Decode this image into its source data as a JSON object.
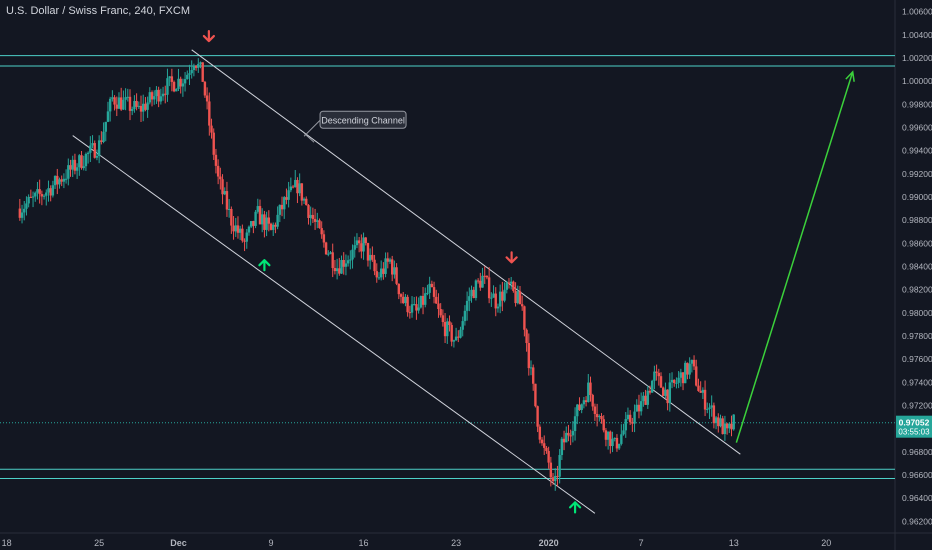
{
  "header": {
    "title": "U.S. Dollar / Swiss Franc, 240, FXCM"
  },
  "colors": {
    "background": "#131722",
    "up": "#26a69a",
    "down": "#ef5350",
    "channel": "#d1d4dc",
    "level": "#4dd0c8",
    "projection": "#3bd13b",
    "arrow_down": "#ef5350",
    "arrow_up": "#00e676",
    "axis_text": "#b2b5be",
    "price_tag": "#26a69a"
  },
  "chart_data": {
    "type": "candlestick",
    "title": "U.S. Dollar / Swiss Franc, 240, FXCM",
    "timeframe": "240",
    "x_tick_labels": [
      "18",
      "25",
      "Dec",
      "9",
      "16",
      "23",
      "2020",
      "7",
      "13",
      "20"
    ],
    "y_tick_labels": [
      "1.00600",
      "1.00400",
      "1.00200",
      "1.00000",
      "0.99800",
      "0.99600",
      "0.99400",
      "0.99200",
      "0.99000",
      "0.98800",
      "0.98600",
      "0.98400",
      "0.98200",
      "0.98000",
      "0.97800",
      "0.97600",
      "0.97400",
      "0.97200",
      "0.97000",
      "0.96800",
      "0.96600",
      "0.96400",
      "0.96200"
    ],
    "ylim": [
      0.961,
      1.007
    ],
    "last_price": "0.97052",
    "countdown": "03:55:03",
    "price_path": [
      [
        18,
        0.989
      ],
      [
        20,
        0.9905
      ],
      [
        22,
        0.9925
      ],
      [
        24,
        0.9945
      ],
      [
        25,
        0.9985
      ],
      [
        27,
        0.9975
      ],
      [
        29,
        0.9995
      ],
      [
        30.5,
        1.0003
      ],
      [
        31.2,
        1.002
      ],
      [
        31.8,
        1.0005
      ],
      [
        32.3,
        0.9965
      ],
      [
        33,
        0.9915
      ],
      [
        34,
        0.988
      ],
      [
        35,
        0.986
      ],
      [
        36,
        0.9885
      ],
      [
        37,
        0.987
      ],
      [
        38,
        0.9895
      ],
      [
        39,
        0.991
      ],
      [
        40,
        0.9885
      ],
      [
        41,
        0.986
      ],
      [
        42,
        0.984
      ],
      [
        43,
        0.985
      ],
      [
        44,
        0.986
      ],
      [
        45,
        0.983
      ],
      [
        46,
        0.9845
      ],
      [
        47,
        0.981
      ],
      [
        48,
        0.98
      ],
      [
        49,
        0.982
      ],
      [
        50,
        0.979
      ],
      [
        51,
        0.9775
      ],
      [
        52,
        0.9815
      ],
      [
        53,
        0.983
      ],
      [
        54,
        0.981
      ],
      [
        55,
        0.9822
      ],
      [
        56,
        0.9805
      ],
      [
        56.5,
        0.976
      ],
      [
        57,
        0.972
      ],
      [
        57.5,
        0.9685
      ],
      [
        58,
        0.967
      ],
      [
        58.4,
        0.9645
      ],
      [
        59,
        0.9685
      ],
      [
        60,
        0.971
      ],
      [
        61,
        0.9735
      ],
      [
        62,
        0.9705
      ],
      [
        63,
        0.9685
      ],
      [
        64,
        0.9705
      ],
      [
        65,
        0.972
      ],
      [
        66,
        0.9745
      ],
      [
        67,
        0.973
      ],
      [
        68,
        0.9745
      ],
      [
        68.8,
        0.9755
      ],
      [
        69.5,
        0.973
      ],
      [
        70.5,
        0.9712
      ],
      [
        71.5,
        0.9695
      ],
      [
        72,
        0.9705
      ]
    ],
    "resistance_levels": [
      1.0022,
      1.0013
    ],
    "support_levels": [
      0.9665,
      0.9657
    ],
    "current_price_line": 0.97052,
    "channel": {
      "upper": [
        [
          31.0,
          1.0027
        ],
        [
          72.5,
          0.9678
        ]
      ],
      "lower": [
        [
          22.0,
          0.9953
        ],
        [
          61.5,
          0.9627
        ]
      ]
    },
    "projection": [
      [
        72.2,
        0.9688
      ],
      [
        81.0,
        1.0008
      ]
    ],
    "markers": [
      {
        "kind": "down-arrow",
        "x": 32.3,
        "y": 1.0038
      },
      {
        "kind": "down-arrow",
        "x": 55.2,
        "y": 0.9847
      },
      {
        "kind": "up-arrow",
        "x": 36.5,
        "y": 0.9842
      },
      {
        "kind": "up-arrow",
        "x": 60.0,
        "y": 0.9633
      }
    ],
    "annotations": [
      {
        "text": "Descending Channel",
        "x": 39.5,
        "y": 0.9955
      }
    ],
    "xlim": [
      16.5,
      84.2
    ],
    "x_tick_positions": [
      17,
      24,
      30,
      37,
      44,
      51,
      58,
      65,
      72,
      79
    ],
    "grid": false,
    "legend": "none"
  }
}
